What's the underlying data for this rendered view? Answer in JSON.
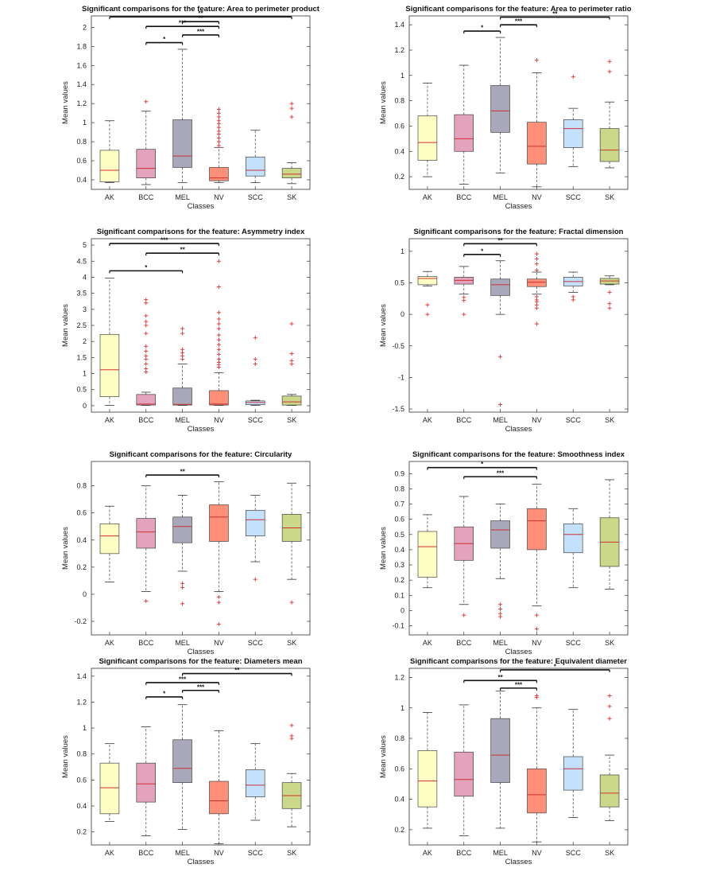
{
  "colors": {
    "AK": "#fffdc4",
    "BCC": "#e3a3bd",
    "MEL": "#a8a8ba",
    "NV": "#fe9078",
    "SCC": "#c4e1fb",
    "SK": "#c9d989",
    "median": "#d03030",
    "flier": "#e03030",
    "whisker": "#555555"
  },
  "chart_data": [
    {
      "type": "box",
      "title": "Significant comparisons for the feature: Area to perimeter product",
      "xlabel": "Classes",
      "ylabel": "Mean values",
      "categories": [
        "AK",
        "BCC",
        "MEL",
        "NV",
        "SCC",
        "SK"
      ],
      "ylim": [
        0.3,
        2.12
      ],
      "yticks": [
        0.4,
        0.6,
        0.8,
        1,
        1.2,
        1.4,
        1.6,
        1.8,
        2
      ],
      "ytick_labels": [
        "0.4",
        "0.6",
        "0.8",
        "1",
        "1.2",
        "1.4",
        "1.6",
        "1.8",
        "2"
      ],
      "boxes": [
        {
          "min": 0.37,
          "q1": 0.38,
          "median": 0.5,
          "q3": 0.71,
          "max": 1.02,
          "outliers": []
        },
        {
          "min": 0.35,
          "q1": 0.42,
          "median": 0.52,
          "q3": 0.72,
          "max": 1.12,
          "outliers": [
            1.22
          ]
        },
        {
          "min": 0.37,
          "q1": 0.53,
          "median": 0.65,
          "q3": 1.03,
          "max": 1.77,
          "outliers": []
        },
        {
          "min": 0.37,
          "q1": 0.39,
          "median": 0.42,
          "q3": 0.53,
          "max": 0.74,
          "outliers": [
            0.76,
            0.8,
            0.84,
            0.88,
            0.91,
            0.95,
            0.99,
            1.02,
            1.06,
            1.1,
            1.14
          ]
        },
        {
          "min": 0.37,
          "q1": 0.44,
          "median": 0.5,
          "q3": 0.64,
          "max": 0.92,
          "outliers": []
        },
        {
          "min": 0.36,
          "q1": 0.42,
          "median": 0.46,
          "q3": 0.52,
          "max": 0.58,
          "outliers": [
            1.06,
            1.15,
            1.2
          ]
        }
      ],
      "comparisons": [
        {
          "from": "AK",
          "to": "SK",
          "y": 2.11,
          "label": "**"
        },
        {
          "from": "BCC",
          "to": "NV",
          "y": 2.01,
          "label": "***"
        },
        {
          "from": "BCC",
          "to": "MEL",
          "y": 1.84,
          "label": "*"
        },
        {
          "from": "MEL",
          "to": "NV",
          "y": 1.92,
          "label": "***"
        },
        {
          "from": "MEL",
          "to": "NV",
          "y": 2.06,
          "label": "**"
        }
      ]
    },
    {
      "type": "box",
      "title": "Significant comparisons for the feature: Area to perimeter ratio",
      "xlabel": "Classes",
      "ylabel": "Mean values",
      "categories": [
        "AK",
        "BCC",
        "MEL",
        "NV",
        "SCC",
        "SK"
      ],
      "ylim": [
        0.1,
        1.47
      ],
      "yticks": [
        0.2,
        0.4,
        0.6,
        0.8,
        1,
        1.2,
        1.4
      ],
      "ytick_labels": [
        "0.2",
        "0.4",
        "0.6",
        "0.8",
        "1",
        "1.2",
        "1.4"
      ],
      "boxes": [
        {
          "min": 0.2,
          "q1": 0.33,
          "median": 0.47,
          "q3": 0.68,
          "max": 0.94,
          "outliers": []
        },
        {
          "min": 0.14,
          "q1": 0.4,
          "median": 0.5,
          "q3": 0.69,
          "max": 1.08,
          "outliers": []
        },
        {
          "min": 0.23,
          "q1": 0.55,
          "median": 0.72,
          "q3": 0.92,
          "max": 1.3,
          "outliers": []
        },
        {
          "min": 0.12,
          "q1": 0.3,
          "median": 0.44,
          "q3": 0.63,
          "max": 1.02,
          "outliers": [
            1.12
          ]
        },
        {
          "min": 0.28,
          "q1": 0.43,
          "median": 0.58,
          "q3": 0.65,
          "max": 0.74,
          "outliers": [
            0.99
          ]
        },
        {
          "min": 0.27,
          "q1": 0.32,
          "median": 0.41,
          "q3": 0.58,
          "max": 0.79,
          "outliers": [
            1.03,
            1.11
          ]
        }
      ],
      "comparisons": [
        {
          "from": "BCC",
          "to": "MEL",
          "y": 1.35,
          "label": "*"
        },
        {
          "from": "MEL",
          "to": "NV",
          "y": 1.4,
          "label": "***"
        },
        {
          "from": "MEL",
          "to": "SK",
          "y": 1.46,
          "label": "**"
        }
      ]
    },
    {
      "type": "box",
      "title": "Significant comparisons for the feature: Asymmetry index",
      "xlabel": "Classes",
      "ylabel": "Mean values",
      "categories": [
        "AK",
        "BCC",
        "MEL",
        "NV",
        "SCC",
        "SK"
      ],
      "ylim": [
        -0.2,
        5.2
      ],
      "yticks": [
        0,
        0.5,
        1,
        1.5,
        2,
        2.5,
        3,
        3.5,
        4,
        4.5,
        5
      ],
      "ytick_labels": [
        "0",
        "0.5",
        "1",
        "1.5",
        "2",
        "2.5",
        "3",
        "3.5",
        "4",
        "4.5",
        "5"
      ],
      "boxes": [
        {
          "min": 0.01,
          "q1": 0.28,
          "median": 1.12,
          "q3": 2.22,
          "max": 3.97,
          "outliers": []
        },
        {
          "min": 0.01,
          "q1": 0.02,
          "median": 0.05,
          "q3": 0.35,
          "max": 0.42,
          "outliers": [
            1.05,
            1.15,
            1.3,
            1.45,
            1.55,
            1.7,
            1.85,
            2.25,
            2.5,
            2.62,
            2.8,
            3.2,
            3.3
          ]
        },
        {
          "min": 0.01,
          "q1": 0.02,
          "median": 0.04,
          "q3": 0.55,
          "max": 1.3,
          "outliers": [
            1.45,
            1.55,
            1.65,
            1.75,
            2.25,
            2.4
          ]
        },
        {
          "min": 0.01,
          "q1": 0.02,
          "median": 0.05,
          "q3": 0.47,
          "max": 1.03,
          "outliers": [
            1.2,
            1.28,
            1.35,
            1.45,
            1.6,
            1.75,
            1.9,
            2.05,
            2.2,
            2.4,
            2.55,
            2.7,
            2.9,
            3.7,
            4.5
          ]
        },
        {
          "min": 0.01,
          "q1": 0.03,
          "median": 0.1,
          "q3": 0.15,
          "max": 0.17,
          "outliers": [
            1.3,
            1.45,
            2.12
          ]
        },
        {
          "min": 0.01,
          "q1": 0.02,
          "median": 0.12,
          "q3": 0.3,
          "max": 0.35,
          "outliers": [
            1.3,
            1.4,
            1.62,
            2.55
          ]
        }
      ],
      "comparisons": [
        {
          "from": "AK",
          "to": "NV",
          "y": 5.05,
          "label": "***"
        },
        {
          "from": "BCC",
          "to": "NV",
          "y": 4.75,
          "label": "**"
        },
        {
          "from": "AK",
          "to": "MEL",
          "y": 4.2,
          "label": "*"
        }
      ]
    },
    {
      "type": "box",
      "title": "Significant comparisons for the feature: Fractal dimension",
      "xlabel": "Classes",
      "ylabel": "Mean values",
      "categories": [
        "AK",
        "BCC",
        "MEL",
        "NV",
        "SCC",
        "SK"
      ],
      "ylim": [
        -1.55,
        1.2
      ],
      "yticks": [
        -1.5,
        -1,
        -0.5,
        0,
        0.5,
        1
      ],
      "ytick_labels": [
        "-1.5",
        "-1",
        "-0.5",
        "0",
        "0.5",
        "1"
      ],
      "boxes": [
        {
          "min": 0.45,
          "q1": 0.47,
          "median": 0.57,
          "q3": 0.6,
          "max": 0.68,
          "outliers": [
            0.0,
            0.15
          ]
        },
        {
          "min": 0.32,
          "q1": 0.48,
          "median": 0.54,
          "q3": 0.59,
          "max": 0.76,
          "outliers": [
            0.0,
            0.22,
            0.27
          ]
        },
        {
          "min": 0.0,
          "q1": 0.3,
          "median": 0.47,
          "q3": 0.56,
          "max": 0.85,
          "outliers": [
            -0.67,
            -1.43
          ]
        },
        {
          "min": 0.32,
          "q1": 0.44,
          "median": 0.51,
          "q3": 0.56,
          "max": 0.67,
          "outliers": [
            -0.15,
            0.1,
            0.15,
            0.2,
            0.23,
            0.28,
            0.7,
            0.8,
            0.88,
            0.96
          ]
        },
        {
          "min": 0.35,
          "q1": 0.45,
          "median": 0.52,
          "q3": 0.59,
          "max": 0.67,
          "outliers": [
            0.23,
            0.28
          ]
        },
        {
          "min": 0.47,
          "q1": 0.48,
          "median": 0.53,
          "q3": 0.57,
          "max": 0.61,
          "outliers": [
            0.1,
            0.17,
            0.35
          ]
        }
      ],
      "comparisons": [
        {
          "from": "BCC",
          "to": "NV",
          "y": 1.12,
          "label": "**"
        },
        {
          "from": "BCC",
          "to": "MEL",
          "y": 0.95,
          "label": "*"
        }
      ]
    },
    {
      "type": "box",
      "title": "Significant comparisons for the feature: Circularity",
      "xlabel": "Classes",
      "ylabel": "Mean values",
      "categories": [
        "AK",
        "BCC",
        "MEL",
        "NV",
        "SCC",
        "SK"
      ],
      "ylim": [
        -0.3,
        0.98
      ],
      "yticks": [
        -0.2,
        0,
        0.2,
        0.4,
        0.6,
        0.8
      ],
      "ytick_labels": [
        "-0.2",
        "0",
        "0.2",
        "0.4",
        "0.6",
        "0.8"
      ],
      "boxes": [
        {
          "min": 0.09,
          "q1": 0.3,
          "median": 0.43,
          "q3": 0.52,
          "max": 0.65,
          "outliers": []
        },
        {
          "min": 0.02,
          "q1": 0.34,
          "median": 0.46,
          "q3": 0.56,
          "max": 0.8,
          "outliers": [
            -0.05
          ]
        },
        {
          "min": 0.17,
          "q1": 0.38,
          "median": 0.5,
          "q3": 0.57,
          "max": 0.73,
          "outliers": [
            -0.07,
            0.05,
            0.08
          ]
        },
        {
          "min": 0.02,
          "q1": 0.39,
          "median": 0.57,
          "q3": 0.66,
          "max": 0.83,
          "outliers": [
            -0.22,
            -0.06,
            -0.02
          ]
        },
        {
          "min": 0.24,
          "q1": 0.43,
          "median": 0.55,
          "q3": 0.62,
          "max": 0.73,
          "outliers": [
            0.11
          ]
        },
        {
          "min": 0.11,
          "q1": 0.39,
          "median": 0.49,
          "q3": 0.59,
          "max": 0.82,
          "outliers": [
            -0.06
          ]
        }
      ],
      "comparisons": [
        {
          "from": "BCC",
          "to": "NV",
          "y": 0.88,
          "label": "**"
        }
      ]
    },
    {
      "type": "box",
      "title": "Significant comparisons for the feature: Smoothness index",
      "xlabel": "Classes",
      "ylabel": "Mean values",
      "categories": [
        "AK",
        "BCC",
        "MEL",
        "NV",
        "SCC",
        "SK"
      ],
      "ylim": [
        -0.16,
        0.98
      ],
      "yticks": [
        -0.1,
        0,
        0.1,
        0.2,
        0.3,
        0.4,
        0.5,
        0.6,
        0.7,
        0.8,
        0.9
      ],
      "ytick_labels": [
        "-0.1",
        "0",
        "0.1",
        "0.2",
        "0.3",
        "0.4",
        "0.5",
        "0.6",
        "0.7",
        "0.8",
        "0.9"
      ],
      "boxes": [
        {
          "min": 0.15,
          "q1": 0.22,
          "median": 0.42,
          "q3": 0.52,
          "max": 0.63,
          "outliers": []
        },
        {
          "min": 0.04,
          "q1": 0.33,
          "median": 0.44,
          "q3": 0.55,
          "max": 0.75,
          "outliers": [
            -0.03
          ]
        },
        {
          "min": 0.21,
          "q1": 0.41,
          "median": 0.53,
          "q3": 0.59,
          "max": 0.7,
          "outliers": [
            -0.04,
            -0.02,
            0.01,
            0.04
          ]
        },
        {
          "min": 0.03,
          "q1": 0.4,
          "median": 0.59,
          "q3": 0.67,
          "max": 0.83,
          "outliers": [
            -0.12,
            -0.03
          ]
        },
        {
          "min": 0.15,
          "q1": 0.38,
          "median": 0.5,
          "q3": 0.57,
          "max": 0.67,
          "outliers": []
        },
        {
          "min": 0.14,
          "q1": 0.29,
          "median": 0.45,
          "q3": 0.61,
          "max": 0.86,
          "outliers": []
        }
      ],
      "comparisons": [
        {
          "from": "AK",
          "to": "NV",
          "y": 0.94,
          "label": "*"
        },
        {
          "from": "BCC",
          "to": "NV",
          "y": 0.88,
          "label": "***"
        }
      ]
    },
    {
      "type": "box",
      "title": "Significant comparisons for the feature: Diameters mean",
      "xlabel": "Classes",
      "ylabel": "Mean values",
      "categories": [
        "AK",
        "BCC",
        "MEL",
        "NV",
        "SCC",
        "SK"
      ],
      "ylim": [
        0.1,
        1.46
      ],
      "yticks": [
        0.2,
        0.4,
        0.6,
        0.8,
        1,
        1.2,
        1.4
      ],
      "ytick_labels": [
        "0.2",
        "0.4",
        "0.6",
        "0.8",
        "1",
        "1.2",
        "1.4"
      ],
      "boxes": [
        {
          "min": 0.28,
          "q1": 0.34,
          "median": 0.54,
          "q3": 0.73,
          "max": 0.88,
          "outliers": []
        },
        {
          "min": 0.17,
          "q1": 0.43,
          "median": 0.57,
          "q3": 0.73,
          "max": 1.01,
          "outliers": []
        },
        {
          "min": 0.22,
          "q1": 0.58,
          "median": 0.69,
          "q3": 0.91,
          "max": 1.18,
          "outliers": []
        },
        {
          "min": 0.11,
          "q1": 0.34,
          "median": 0.44,
          "q3": 0.59,
          "max": 0.98,
          "outliers": []
        },
        {
          "min": 0.29,
          "q1": 0.47,
          "median": 0.56,
          "q3": 0.68,
          "max": 0.88,
          "outliers": []
        },
        {
          "min": 0.24,
          "q1": 0.38,
          "median": 0.48,
          "q3": 0.58,
          "max": 0.65,
          "outliers": [
            0.92,
            0.94,
            1.02
          ]
        }
      ],
      "comparisons": [
        {
          "from": "MEL",
          "to": "SK",
          "y": 1.42,
          "label": "**"
        },
        {
          "from": "BCC",
          "to": "NV",
          "y": 1.35,
          "label": "***"
        },
        {
          "from": "MEL",
          "to": "NV",
          "y": 1.29,
          "label": "***"
        },
        {
          "from": "BCC",
          "to": "MEL",
          "y": 1.24,
          "label": "*"
        }
      ]
    },
    {
      "type": "box",
      "title": "Significant comparisons for the feature: Equivalent diameter",
      "xlabel": "Classes",
      "ylabel": "Mean values",
      "categories": [
        "AK",
        "BCC",
        "MEL",
        "NV",
        "SCC",
        "SK"
      ],
      "ylim": [
        0.1,
        1.26
      ],
      "yticks": [
        0.2,
        0.4,
        0.6,
        0.8,
        1,
        1.2
      ],
      "ytick_labels": [
        "0.2",
        "0.4",
        "0.6",
        "0.8",
        "1",
        "1.2"
      ],
      "boxes": [
        {
          "min": 0.21,
          "q1": 0.35,
          "median": 0.52,
          "q3": 0.72,
          "max": 0.97,
          "outliers": []
        },
        {
          "min": 0.16,
          "q1": 0.42,
          "median": 0.53,
          "q3": 0.71,
          "max": 1.02,
          "outliers": []
        },
        {
          "min": 0.21,
          "q1": 0.51,
          "median": 0.69,
          "q3": 0.93,
          "max": 1.11,
          "outliers": []
        },
        {
          "min": 0.12,
          "q1": 0.31,
          "median": 0.43,
          "q3": 0.6,
          "max": 1.0,
          "outliers": [
            1.07,
            1.08
          ]
        },
        {
          "min": 0.28,
          "q1": 0.46,
          "median": 0.6,
          "q3": 0.68,
          "max": 0.99,
          "outliers": []
        },
        {
          "min": 0.26,
          "q1": 0.35,
          "median": 0.44,
          "q3": 0.56,
          "max": 0.69,
          "outliers": [
            0.93,
            1.01,
            1.08
          ]
        }
      ],
      "comparisons": [
        {
          "from": "MEL",
          "to": "SK",
          "y": 1.25,
          "label": "*"
        },
        {
          "from": "BCC",
          "to": "NV",
          "y": 1.18,
          "label": "**"
        },
        {
          "from": "MEL",
          "to": "NV",
          "y": 1.13,
          "label": "***"
        }
      ]
    }
  ]
}
